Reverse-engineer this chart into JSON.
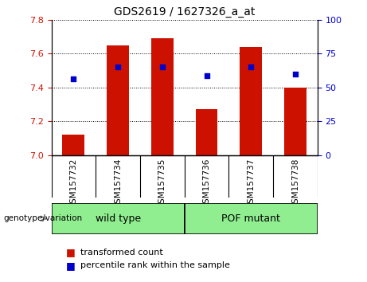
{
  "title": "GDS2619 / 1627326_a_at",
  "samples": [
    "GSM157732",
    "GSM157734",
    "GSM157735",
    "GSM157736",
    "GSM157737",
    "GSM157738"
  ],
  "bar_values": [
    7.12,
    7.65,
    7.69,
    7.27,
    7.64,
    7.4
  ],
  "percentile_values": [
    7.45,
    7.52,
    7.52,
    7.47,
    7.52,
    7.48
  ],
  "bar_bottom": 7.0,
  "ylim_left": [
    7.0,
    7.8
  ],
  "ylim_right": [
    0,
    100
  ],
  "yticks_left": [
    7.0,
    7.2,
    7.4,
    7.6,
    7.8
  ],
  "yticks_right": [
    0,
    25,
    50,
    75,
    100
  ],
  "bar_color": "#cc1100",
  "dot_color": "#0000cc",
  "grid_color": "#000000",
  "group_bg_color": "#90ee90",
  "xtick_bg_color": "#cccccc",
  "plot_bg_color": "#ffffff",
  "wild_type_label": "wild type",
  "pof_mutant_label": "POF mutant",
  "genotype_label": "genotype/variation",
  "legend_bar_label": "transformed count",
  "legend_dot_label": "percentile rank within the sample",
  "tick_label_color_left": "#cc1100",
  "tick_label_color_right": "#0000cc",
  "figsize": [
    4.61,
    3.54
  ],
  "dpi": 100
}
